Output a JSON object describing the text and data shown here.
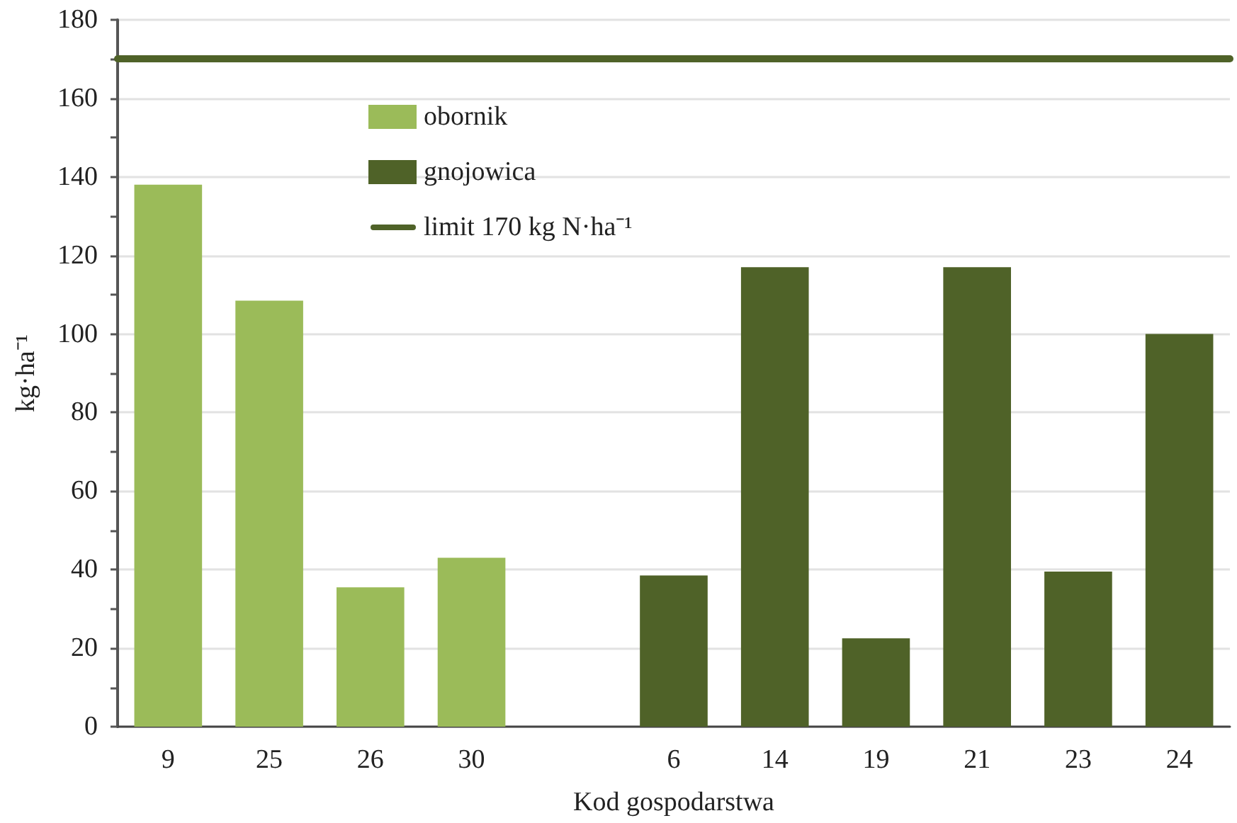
{
  "chart_data": {
    "type": "bar",
    "xlabel": "Kod gospodarstwa",
    "ylabel": "kg·ha⁻¹",
    "categories": [
      "9",
      "25",
      "26",
      "30",
      null,
      "6",
      "14",
      "19",
      "21",
      "23",
      "24"
    ],
    "series": [
      {
        "name": "obornik",
        "color": "#9bbb59",
        "values": [
          138,
          108.5,
          35.5,
          43,
          null,
          null,
          null,
          null,
          null,
          null,
          null
        ]
      },
      {
        "name": "gnojowica",
        "color": "#4f6228",
        "values": [
          null,
          null,
          null,
          null,
          null,
          38.5,
          117,
          22.5,
          117,
          39.5,
          100
        ]
      }
    ],
    "ylim": [
      0,
      180
    ],
    "yticks": [
      0,
      {
        "value": 10,
        "label": null
      },
      20,
      {
        "value": 30,
        "label": null
      },
      40,
      {
        "value": 50,
        "label": null
      },
      60,
      {
        "value": 70,
        "label": null
      },
      80,
      {
        "value": 90,
        "label": null
      },
      100,
      {
        "value": 110,
        "label": null
      },
      120,
      {
        "value": 130,
        "label": null
      },
      140,
      {
        "value": 150,
        "label": null
      },
      160,
      {
        "value": 170,
        "label": null
      },
      180
    ],
    "ref_lines": [
      {
        "axis": "y",
        "value": 170,
        "label": "limit 170 kg N·ha⁻¹",
        "color": "#4f6228",
        "line_style": "solid"
      }
    ],
    "grid": "y",
    "legend": "top left"
  }
}
